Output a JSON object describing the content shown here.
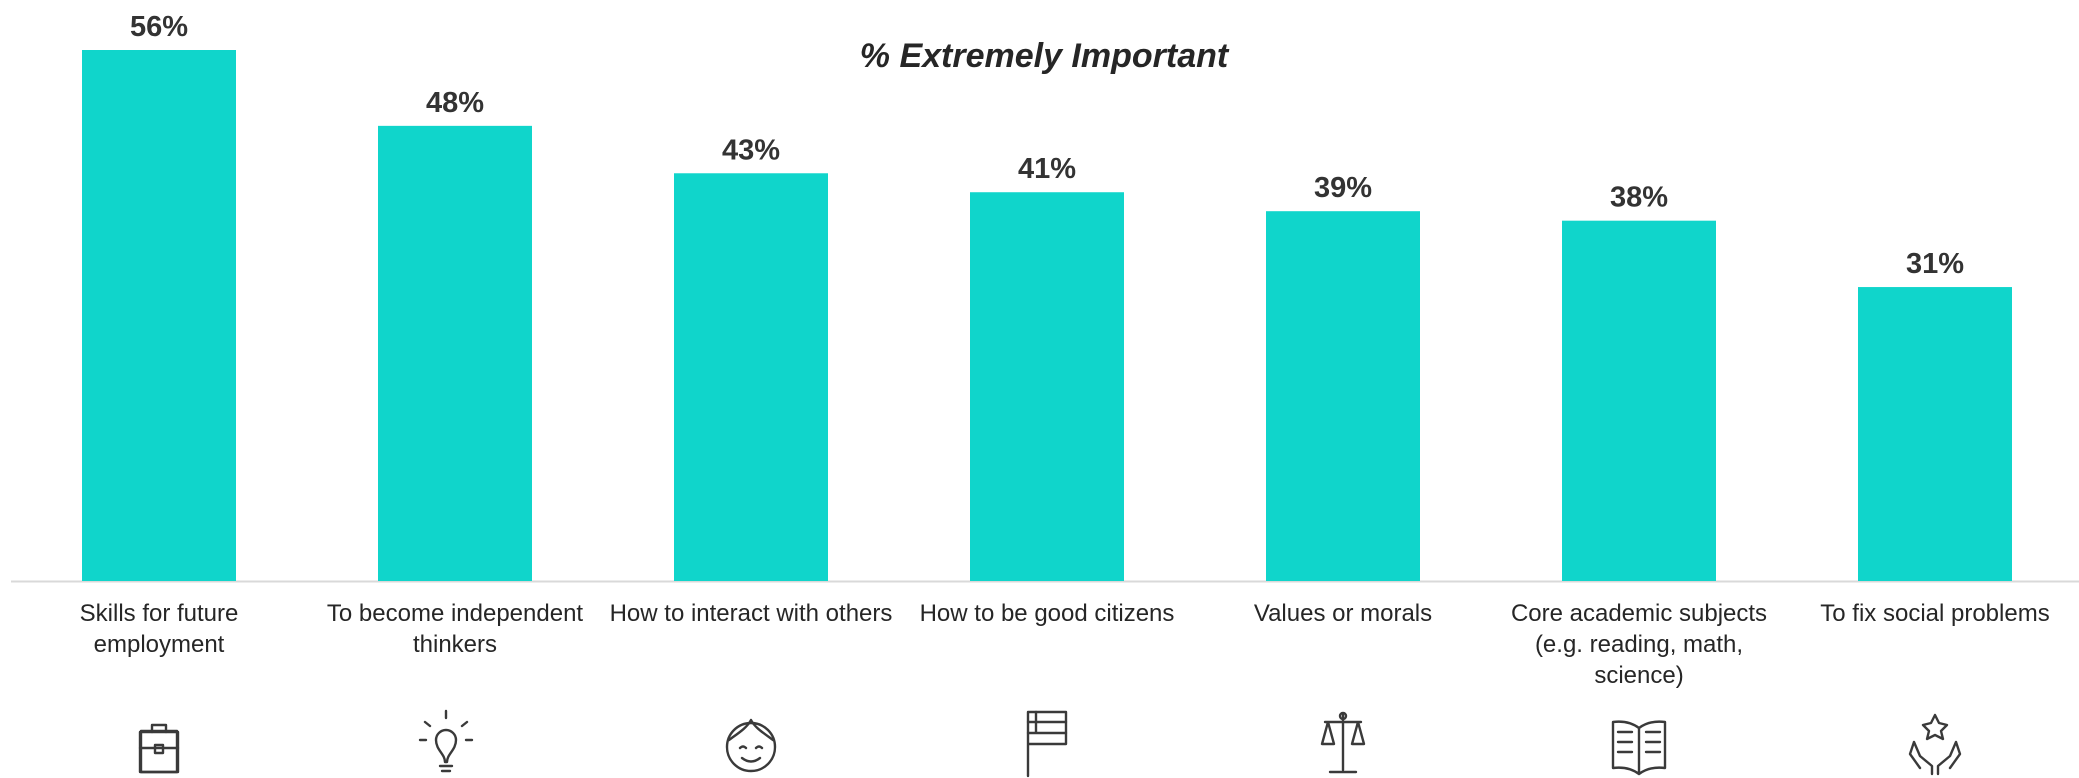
{
  "chart_data": {
    "type": "bar",
    "title": "% Extremely Important",
    "categories": [
      "Skills for future employment",
      "To become independent thinkers",
      "How to interact with others",
      "How to be good citizens",
      "Values or morals",
      "Core academic subjects (e.g. reading, math, science)",
      "To fix social problems"
    ],
    "values": [
      56,
      48,
      43,
      41,
      39,
      38,
      31
    ],
    "value_labels": [
      "56%",
      "48%",
      "43%",
      "41%",
      "39%",
      "38%",
      "31%"
    ],
    "color": "#10d5cb"
  }
}
